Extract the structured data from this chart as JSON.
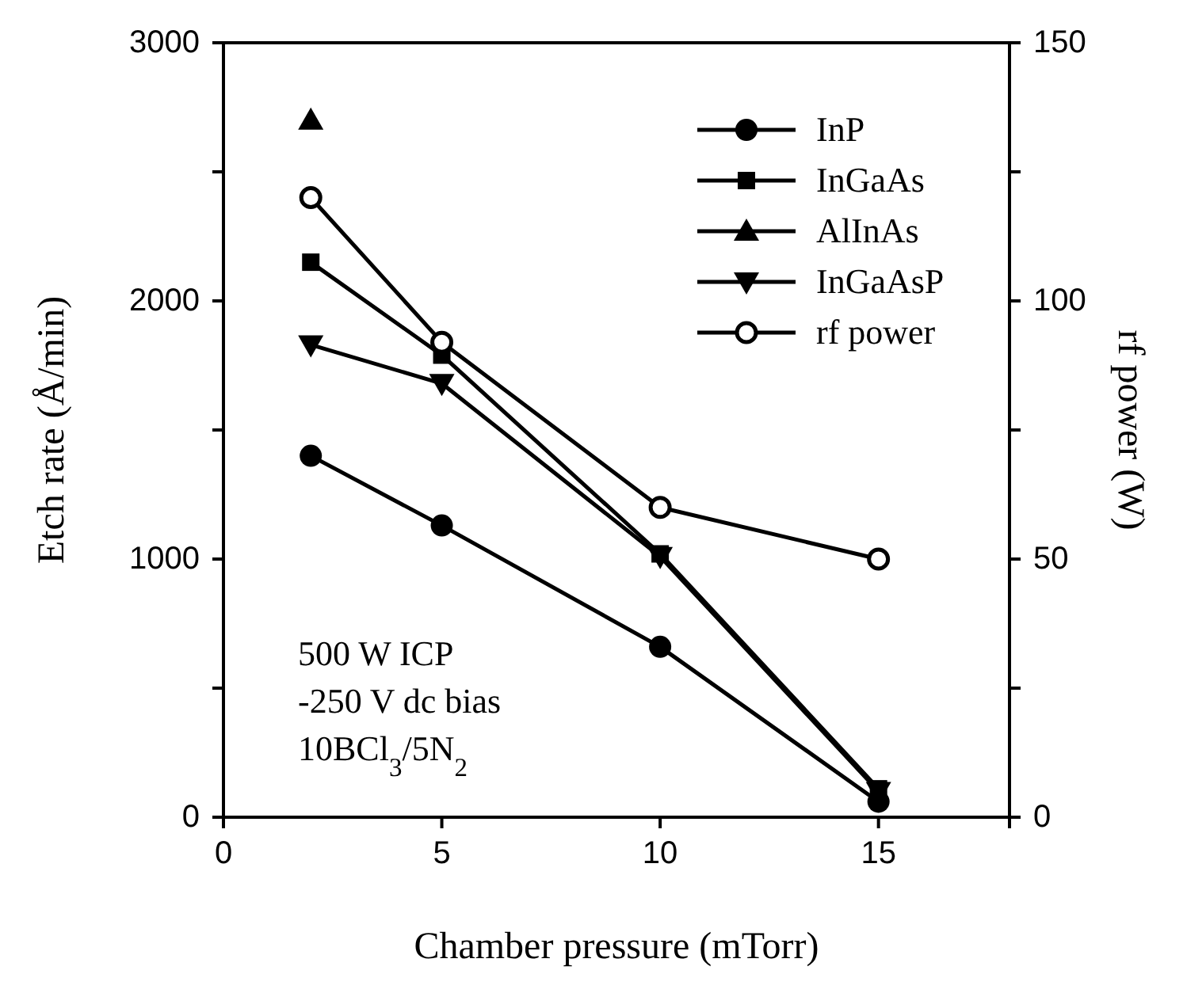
{
  "chart_data": {
    "type": "line",
    "xlabel": "Chamber pressure (mTorr)",
    "ylabel": "Etch rate (Å/min)",
    "y2label": "rf power (W)",
    "x": [
      2,
      5,
      10,
      15
    ],
    "series": [
      {
        "name": "InP",
        "color": "#000000",
        "marker": "circle",
        "values": [
          1400,
          1130,
          660,
          60
        ]
      },
      {
        "name": "InGaAs",
        "color": "#000000",
        "marker": "square",
        "values": [
          2150,
          1790,
          1020,
          110
        ]
      },
      {
        "name": "AlInAs",
        "color": "#000000",
        "marker": "triangle",
        "values": [
          2700,
          null,
          null,
          null
        ]
      },
      {
        "name": "InGaAsP",
        "color": "#000000",
        "marker": "triangle-down",
        "values": [
          1830,
          1680,
          1010,
          100
        ]
      },
      {
        "name": "rf power",
        "color": "#000000",
        "marker": "circle",
        "axis": "y2",
        "values": [
          120,
          92,
          60,
          50
        ]
      }
    ],
    "xlim": [
      0,
      18
    ],
    "xticks": [
      0,
      5,
      10,
      15
    ],
    "ylim": [
      0,
      3000
    ],
    "yticks": [
      0,
      {
        "value": 500,
        "label": null
      },
      1000,
      {
        "value": 1500,
        "label": null
      },
      2000,
      {
        "value": 2500,
        "label": null
      },
      3000
    ],
    "y2lim": [
      0,
      150
    ],
    "y2ticks": [
      0,
      {
        "value": 25,
        "label": null
      },
      50,
      {
        "value": 75,
        "label": null
      },
      100,
      {
        "value": 125,
        "label": null
      },
      150
    ],
    "legend": "top right",
    "grid": false,
    "annotations": [
      "500 W ICP",
      "-250 V dc bias",
      "10BCl$_{3}$/5N$_{2}$"
    ]
  }
}
